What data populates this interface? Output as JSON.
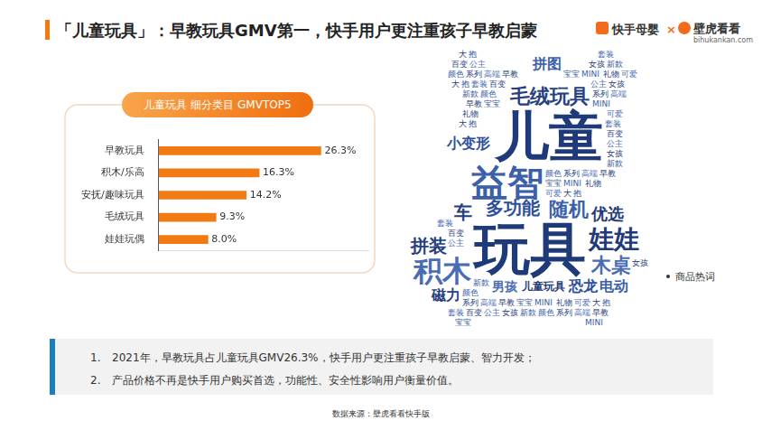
{
  "header": {
    "title": "「儿童玩具」：早教玩具GMV第一，快手用户更注重孩子早教启蒙",
    "brand_left": "快手母婴",
    "cross": "×",
    "brand_right": "壁虎看看",
    "brand_url": "bihukankan.com"
  },
  "chart_data": {
    "type": "bar",
    "title": "儿童玩具 细分类目 GMVTOP5",
    "orientation": "horizontal",
    "categories": [
      "早教玩具",
      "积木/乐高",
      "安抚/趣味玩具",
      "毛绒玩具",
      "娃娃玩偶"
    ],
    "values": [
      26.3,
      16.3,
      14.2,
      9.3,
      8.0
    ],
    "value_labels": [
      "26.3%",
      "16.3%",
      "14.2%",
      "9.3%",
      "8.0%"
    ],
    "color": "#f27a12",
    "xlim": [
      0,
      34
    ],
    "xticks": [],
    "data_labels": true,
    "tick_labels": "y",
    "grid": false
  },
  "word_cloud": {
    "label": "商品热词",
    "words": [
      "儿童",
      "玩具",
      "益智",
      "毛绒玩具",
      "积木",
      "娃娃",
      "多功能",
      "随机",
      "拼装",
      "木桌",
      "优选",
      "恐龙",
      "电动",
      "磁力",
      "男孩",
      "儿童玩具",
      "小变形",
      "拼图",
      "车",
      "大",
      "抱",
      "套装",
      "百变",
      "公主",
      "女孩",
      "新款",
      "颜色",
      "系列",
      "高端",
      "早教",
      "宝宝",
      "MINI",
      "礼物",
      "可爱"
    ]
  },
  "notes": [
    {
      "number": "1.",
      "text": "2021年，早教玩具占儿童玩具GMV26.3%，快手用户更注重孩子早教启蒙、智力开发；"
    },
    {
      "number": "2.",
      "text": "产品价格不再是快手用户购买首选，功能性、安全性影响用户衡量价值。"
    }
  ],
  "source": "数据来源：壁虎看看快手版"
}
